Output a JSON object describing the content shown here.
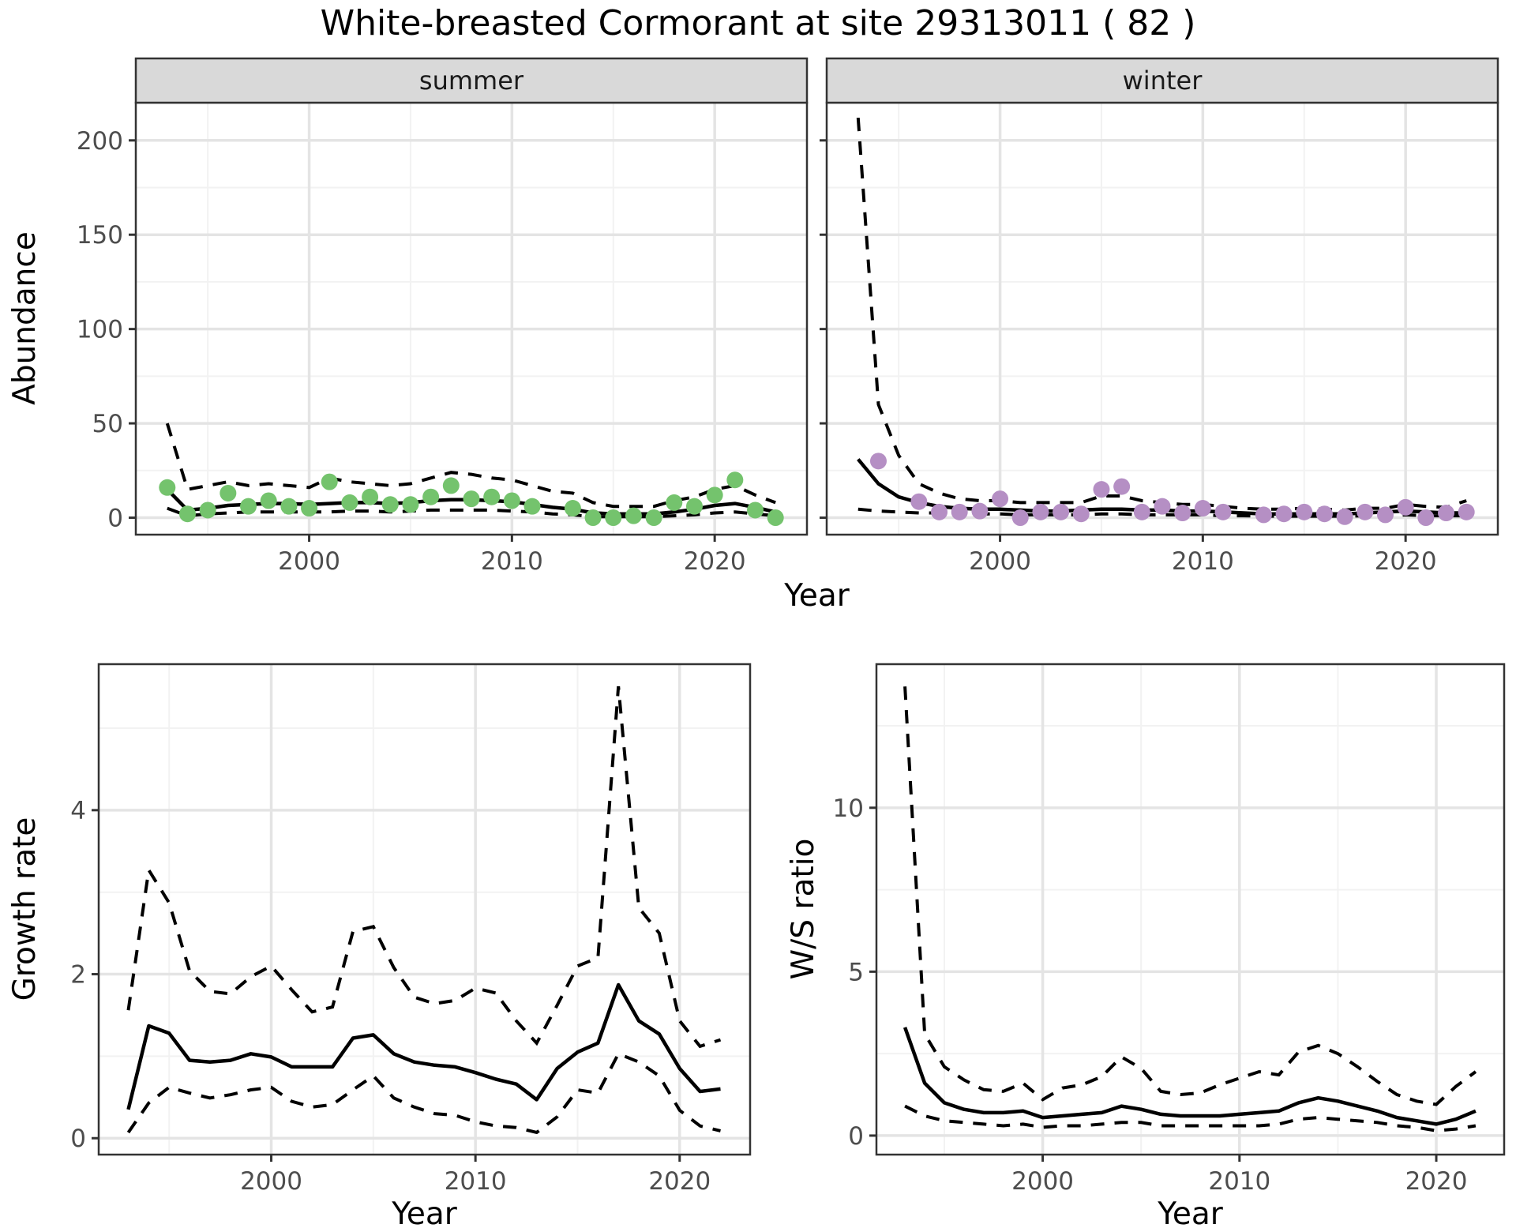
{
  "title": "White-breasted Cormorant at site 29313011 ( 82 )",
  "top_x_axis_title": "Year",
  "colors": {
    "summer_points": "#74C36D",
    "winter_points": "#B58FC4",
    "line": "#000000",
    "strip_bg": "#D9D9D9",
    "panel_bg": "#FFFFFF",
    "panel_border": "#333333",
    "grid_major": "#E4E4E4",
    "grid_minor": "#F2F2F2",
    "tick_text": "#4D4D4D"
  },
  "chart_data": [
    {
      "id": "abundance_summer",
      "type": "line",
      "facet_label": "summer",
      "ylabel": "Abundance",
      "xlabel": "Year",
      "x_domain": [
        1991.45,
        2024.55
      ],
      "y_domain": [
        -9,
        220
      ],
      "x_ticks": [
        2000,
        2010,
        2020
      ],
      "x_minor": [
        1995,
        2005,
        2015
      ],
      "y_ticks": [
        0,
        50,
        100,
        150,
        200
      ],
      "y_minor": [
        25,
        75,
        125,
        175
      ],
      "grid": true,
      "legend": "none",
      "point_color": "#74C36D",
      "points": {
        "years": [
          1993,
          1994,
          1995,
          1996,
          1997,
          1998,
          1999,
          2000,
          2001,
          2002,
          2003,
          2004,
          2005,
          2006,
          2007,
          2008,
          2009,
          2010,
          2011,
          2013,
          2014,
          2015,
          2016,
          2017,
          2018,
          2019,
          2020,
          2021,
          2022,
          2023
        ],
        "values": [
          16,
          2,
          4,
          13,
          6,
          9,
          6,
          5,
          19,
          8,
          11,
          7,
          7,
          11,
          17,
          10,
          11,
          9,
          6,
          5,
          0,
          0,
          1,
          0,
          8,
          6,
          12,
          20,
          4,
          0
        ]
      },
      "fit": {
        "years": [
          1993,
          1994,
          1995,
          1996,
          1997,
          1998,
          1999,
          2000,
          2001,
          2002,
          2003,
          2004,
          2005,
          2006,
          2007,
          2008,
          2009,
          2010,
          2011,
          2012,
          2013,
          2014,
          2015,
          2016,
          2017,
          2018,
          2019,
          2020,
          2021,
          2022,
          2023
        ],
        "values": [
          15,
          4,
          5,
          6.5,
          7,
          7.5,
          7.5,
          7,
          7.5,
          8,
          8,
          7.5,
          8,
          9,
          9.5,
          9.5,
          9,
          8.5,
          7,
          5.5,
          4.5,
          2.5,
          2,
          2,
          2,
          3,
          4.5,
          6.5,
          7.5,
          5.5,
          3
        ]
      },
      "upper_ci": {
        "years": [
          1993,
          1994,
          1995,
          1996,
          1997,
          1998,
          1999,
          2000,
          2001,
          2002,
          2003,
          2004,
          2005,
          2006,
          2007,
          2008,
          2009,
          2010,
          2011,
          2012,
          2013,
          2014,
          2015,
          2016,
          2017,
          2018,
          2019,
          2020,
          2021,
          2022,
          2023
        ],
        "values": [
          50,
          15,
          17,
          19,
          17,
          18,
          17,
          16,
          21,
          19,
          18,
          17,
          18,
          21,
          24,
          23,
          21,
          20,
          17,
          14,
          13,
          8,
          6,
          6,
          6,
          9,
          11,
          15,
          17,
          12,
          8
        ]
      },
      "lower_ci": {
        "years": [
          1993,
          1994,
          1995,
          1996,
          1997,
          1998,
          1999,
          2000,
          2001,
          2002,
          2003,
          2004,
          2005,
          2006,
          2007,
          2008,
          2009,
          2010,
          2011,
          2012,
          2013,
          2014,
          2015,
          2016,
          2017,
          2018,
          2019,
          2020,
          2021,
          2022,
          2023
        ],
        "values": [
          5,
          1,
          2,
          2.5,
          3,
          3,
          3,
          3,
          3,
          3.5,
          3.5,
          3,
          3.5,
          4,
          4,
          4,
          4,
          3.5,
          3,
          2,
          1.5,
          0.5,
          0.5,
          0.5,
          0.5,
          1,
          1.5,
          2.5,
          3,
          2,
          1
        ]
      }
    },
    {
      "id": "abundance_winter",
      "type": "line",
      "facet_label": "winter",
      "ylabel": "Abundance",
      "xlabel": "Year",
      "x_domain": [
        1991.45,
        2024.55
      ],
      "y_domain": [
        -9,
        220
      ],
      "x_ticks": [
        2000,
        2010,
        2020
      ],
      "x_minor": [
        1995,
        2005,
        2015
      ],
      "y_ticks": [
        0,
        50,
        100,
        150,
        200
      ],
      "y_minor": [
        25,
        75,
        125,
        175
      ],
      "grid": true,
      "legend": "none",
      "point_color": "#B58FC4",
      "points": {
        "years": [
          1994,
          1996,
          1997,
          1998,
          1999,
          2000,
          2001,
          2002,
          2003,
          2004,
          2005,
          2006,
          2007,
          2008,
          2009,
          2010,
          2011,
          2013,
          2014,
          2015,
          2016,
          2017,
          2018,
          2019,
          2020,
          2021,
          2022,
          2023
        ],
        "values": [
          30,
          8.5,
          3,
          3,
          3.5,
          10,
          0,
          3,
          3,
          2,
          15,
          16.5,
          3,
          6,
          2.5,
          5,
          3,
          1.5,
          2,
          3,
          2,
          0.5,
          3,
          1.5,
          5.5,
          0,
          2.5,
          3
        ]
      },
      "fit": {
        "years": [
          1993,
          1994,
          1995,
          1996,
          1997,
          1998,
          1999,
          2000,
          2001,
          2002,
          2003,
          2004,
          2005,
          2006,
          2007,
          2008,
          2009,
          2010,
          2011,
          2012,
          2013,
          2014,
          2015,
          2016,
          2017,
          2018,
          2019,
          2020,
          2021,
          2022,
          2023
        ],
        "values": [
          31,
          18,
          11,
          8,
          6,
          5,
          4.5,
          4.5,
          4,
          3.5,
          3.5,
          4,
          4.5,
          4.5,
          4,
          4,
          3.5,
          3.5,
          3,
          2.5,
          2,
          2,
          2,
          2,
          2,
          2.5,
          3,
          3.5,
          3,
          2.5,
          2.5
        ]
      },
      "upper_ci": {
        "years": [
          1993,
          1994,
          1995,
          1996,
          1997,
          1998,
          1999,
          2000,
          2001,
          2002,
          2003,
          2004,
          2005,
          2006,
          2007,
          2008,
          2009,
          2010,
          2011,
          2012,
          2013,
          2014,
          2015,
          2016,
          2017,
          2018,
          2019,
          2020,
          2021,
          2022,
          2023
        ],
        "values": [
          212,
          60,
          33,
          18,
          13,
          10,
          9,
          9,
          8,
          8,
          8,
          8,
          11.5,
          11.5,
          9,
          8,
          7,
          7,
          6,
          5,
          4.5,
          4.5,
          5,
          4.5,
          4,
          5,
          5,
          7,
          6,
          5.5,
          9
        ]
      },
      "lower_ci": {
        "years": [
          1993,
          1994,
          1995,
          1996,
          1997,
          1998,
          1999,
          2000,
          2001,
          2002,
          2003,
          2004,
          2005,
          2006,
          2007,
          2008,
          2009,
          2010,
          2011,
          2012,
          2013,
          2014,
          2015,
          2016,
          2017,
          2018,
          2019,
          2020,
          2021,
          2022,
          2023
        ],
        "values": [
          4.5,
          3.5,
          3,
          2.5,
          2.5,
          2,
          2,
          2,
          1.5,
          1.5,
          1.5,
          1.5,
          2,
          2,
          1.5,
          1.5,
          1.5,
          1.5,
          1,
          1,
          0.8,
          0.8,
          0.8,
          0.8,
          0.8,
          1,
          1,
          1.5,
          1,
          1,
          1
        ]
      }
    },
    {
      "id": "growth_rate",
      "type": "line",
      "facet_label": "",
      "ylabel": "Growth rate",
      "xlabel": "Year",
      "x_domain": [
        1991.55,
        2023.45
      ],
      "y_domain": [
        -0.2,
        5.78
      ],
      "x_ticks": [
        2000,
        2010,
        2020
      ],
      "x_minor": [
        1995,
        2005,
        2015
      ],
      "y_ticks": [
        0,
        2,
        4
      ],
      "y_minor": [
        1,
        3,
        5
      ],
      "grid": true,
      "legend": "none",
      "point_color": "none",
      "points": {
        "years": [],
        "values": []
      },
      "fit": {
        "years": [
          1993,
          1994,
          1995,
          1996,
          1997,
          1998,
          1999,
          2000,
          2001,
          2002,
          2003,
          2004,
          2005,
          2006,
          2007,
          2008,
          2009,
          2010,
          2011,
          2012,
          2013,
          2014,
          2015,
          2016,
          2017,
          2018,
          2019,
          2020,
          2021,
          2022
        ],
        "values": [
          0.35,
          1.37,
          1.28,
          0.95,
          0.93,
          0.95,
          1.03,
          0.99,
          0.87,
          0.87,
          0.87,
          1.22,
          1.26,
          1.03,
          0.93,
          0.89,
          0.87,
          0.8,
          0.72,
          0.66,
          0.47,
          0.85,
          1.05,
          1.16,
          1.87,
          1.43,
          1.27,
          0.85,
          0.57,
          0.6
        ]
      },
      "upper_ci": {
        "years": [
          1993,
          1994,
          1995,
          1996,
          1997,
          1998,
          1999,
          2000,
          2001,
          2002,
          2003,
          2004,
          2005,
          2006,
          2007,
          2008,
          2009,
          2010,
          2011,
          2012,
          2013,
          2014,
          2015,
          2016,
          2017,
          2018,
          2019,
          2020,
          2021,
          2022
        ],
        "values": [
          1.56,
          3.27,
          2.87,
          2.04,
          1.79,
          1.76,
          1.97,
          2.1,
          1.81,
          1.54,
          1.6,
          2.52,
          2.58,
          2.08,
          1.72,
          1.64,
          1.68,
          1.83,
          1.77,
          1.43,
          1.16,
          1.62,
          2.1,
          2.2,
          5.51,
          2.81,
          2.5,
          1.43,
          1.12,
          1.2
        ]
      },
      "lower_ci": {
        "years": [
          1993,
          1994,
          1995,
          1996,
          1997,
          1998,
          1999,
          2000,
          2001,
          2002,
          2003,
          2004,
          2005,
          2006,
          2007,
          2008,
          2009,
          2010,
          2011,
          2012,
          2013,
          2014,
          2015,
          2016,
          2017,
          2018,
          2019,
          2020,
          2021,
          2022
        ],
        "values": [
          0.07,
          0.43,
          0.62,
          0.55,
          0.49,
          0.53,
          0.59,
          0.62,
          0.45,
          0.38,
          0.41,
          0.59,
          0.76,
          0.49,
          0.38,
          0.3,
          0.28,
          0.2,
          0.15,
          0.13,
          0.07,
          0.26,
          0.59,
          0.55,
          1.03,
          0.93,
          0.76,
          0.34,
          0.15,
          0.09
        ]
      }
    },
    {
      "id": "ws_ratio",
      "type": "line",
      "facet_label": "",
      "ylabel": "W/S ratio",
      "xlabel": "Year",
      "x_domain": [
        1991.55,
        2023.45
      ],
      "y_domain": [
        -0.58,
        14.38
      ],
      "x_ticks": [
        2000,
        2010,
        2020
      ],
      "x_minor": [
        1995,
        2005,
        2015
      ],
      "y_ticks": [
        0,
        5,
        10
      ],
      "y_minor": [
        2.5,
        7.5,
        12.5
      ],
      "grid": true,
      "legend": "none",
      "point_color": "none",
      "points": {
        "years": [],
        "values": []
      },
      "fit": {
        "years": [
          1993,
          1994,
          1995,
          1996,
          1997,
          1998,
          1999,
          2000,
          2001,
          2002,
          2003,
          2004,
          2005,
          2006,
          2007,
          2008,
          2009,
          2010,
          2011,
          2012,
          2013,
          2014,
          2015,
          2016,
          2017,
          2018,
          2019,
          2020,
          2021,
          2022
        ],
        "values": [
          3.3,
          1.6,
          1.0,
          0.8,
          0.7,
          0.7,
          0.75,
          0.55,
          0.6,
          0.65,
          0.7,
          0.9,
          0.8,
          0.65,
          0.6,
          0.6,
          0.6,
          0.65,
          0.7,
          0.75,
          1.0,
          1.15,
          1.05,
          0.9,
          0.75,
          0.55,
          0.45,
          0.35,
          0.5,
          0.75
        ]
      },
      "upper_ci": {
        "years": [
          1993,
          1994,
          1995,
          1996,
          1997,
          1998,
          1999,
          2000,
          2001,
          2002,
          2003,
          2004,
          2005,
          2006,
          2007,
          2008,
          2009,
          2010,
          2011,
          2012,
          2013,
          2014,
          2015,
          2016,
          2017,
          2018,
          2019,
          2020,
          2021,
          2022
        ],
        "values": [
          13.7,
          3.1,
          2.1,
          1.7,
          1.4,
          1.35,
          1.6,
          1.1,
          1.45,
          1.55,
          1.8,
          2.4,
          2.05,
          1.35,
          1.25,
          1.3,
          1.55,
          1.75,
          1.95,
          1.85,
          2.55,
          2.75,
          2.5,
          2.1,
          1.65,
          1.25,
          1.05,
          0.95,
          1.5,
          1.95
        ]
      },
      "lower_ci": {
        "years": [
          1993,
          1994,
          1995,
          1996,
          1997,
          1998,
          1999,
          2000,
          2001,
          2002,
          2003,
          2004,
          2005,
          2006,
          2007,
          2008,
          2009,
          2010,
          2011,
          2012,
          2013,
          2014,
          2015,
          2016,
          2017,
          2018,
          2019,
          2020,
          2021,
          2022
        ],
        "values": [
          0.9,
          0.6,
          0.45,
          0.4,
          0.35,
          0.3,
          0.35,
          0.25,
          0.3,
          0.3,
          0.35,
          0.4,
          0.4,
          0.3,
          0.3,
          0.3,
          0.3,
          0.3,
          0.3,
          0.35,
          0.5,
          0.55,
          0.5,
          0.45,
          0.4,
          0.3,
          0.25,
          0.15,
          0.2,
          0.3
        ]
      }
    }
  ]
}
